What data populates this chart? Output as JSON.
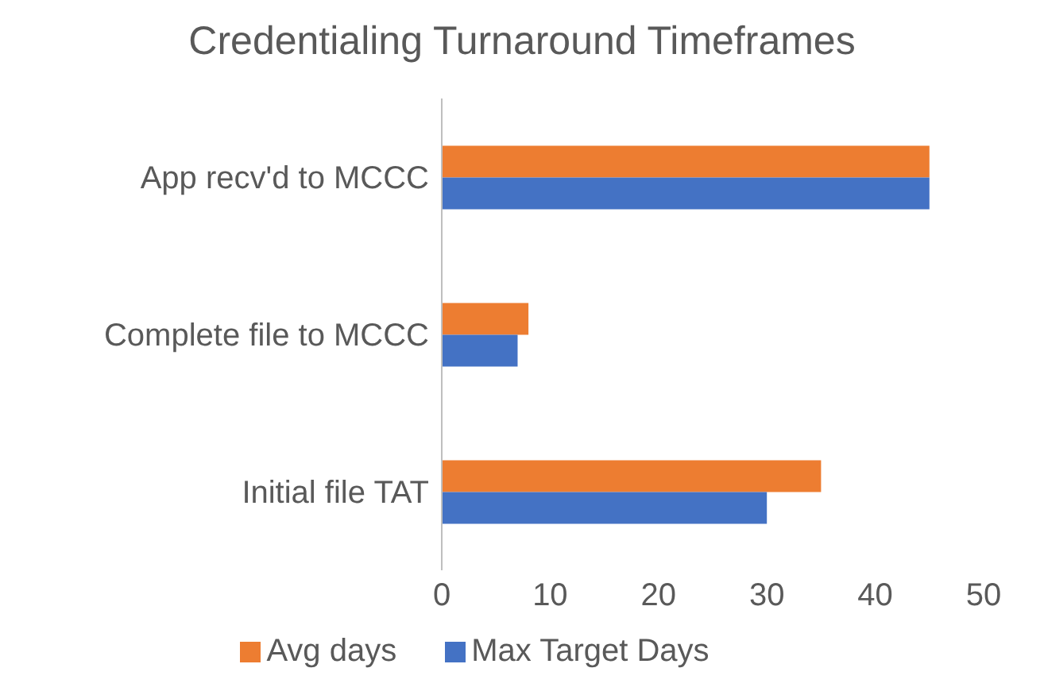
{
  "chart_data": {
    "type": "bar",
    "orientation": "horizontal",
    "title": "Credentialing Turnaround Timeframes",
    "categories": [
      "App recv'd to MCCC",
      "Complete file to MCCC",
      "Initial file TAT"
    ],
    "series": [
      {
        "name": "Avg days",
        "color": "#ed7d31",
        "values": [
          45,
          8,
          35
        ]
      },
      {
        "name": "Max Target Days",
        "color": "#4472c4",
        "values": [
          45,
          7,
          30
        ]
      }
    ],
    "xlim": [
      0,
      50
    ],
    "xticks": [
      0,
      10,
      20,
      30,
      40,
      50
    ],
    "grid": false,
    "legend": "bottom"
  }
}
